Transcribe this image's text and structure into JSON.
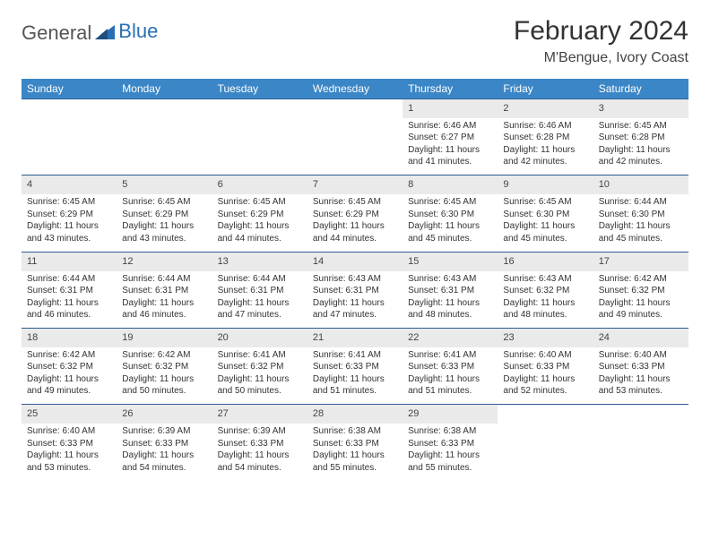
{
  "brand": {
    "word1": "General",
    "word2": "Blue"
  },
  "title": "February 2024",
  "location": "M'Bengue, Ivory Coast",
  "colors": {
    "header_bg": "#3b86c6",
    "header_fg": "#ffffff",
    "daynum_bg": "#eaeaea",
    "rule": "#2e5e8e",
    "brand_blue": "#2a6fb5",
    "text": "#333333",
    "page_bg": "#ffffff"
  },
  "weekdays": [
    "Sunday",
    "Monday",
    "Tuesday",
    "Wednesday",
    "Thursday",
    "Friday",
    "Saturday"
  ],
  "weeks": [
    [
      null,
      null,
      null,
      null,
      {
        "n": "1",
        "sr": "Sunrise: 6:46 AM",
        "ss": "Sunset: 6:27 PM",
        "d1": "Daylight: 11 hours",
        "d2": "and 41 minutes."
      },
      {
        "n": "2",
        "sr": "Sunrise: 6:46 AM",
        "ss": "Sunset: 6:28 PM",
        "d1": "Daylight: 11 hours",
        "d2": "and 42 minutes."
      },
      {
        "n": "3",
        "sr": "Sunrise: 6:45 AM",
        "ss": "Sunset: 6:28 PM",
        "d1": "Daylight: 11 hours",
        "d2": "and 42 minutes."
      }
    ],
    [
      {
        "n": "4",
        "sr": "Sunrise: 6:45 AM",
        "ss": "Sunset: 6:29 PM",
        "d1": "Daylight: 11 hours",
        "d2": "and 43 minutes."
      },
      {
        "n": "5",
        "sr": "Sunrise: 6:45 AM",
        "ss": "Sunset: 6:29 PM",
        "d1": "Daylight: 11 hours",
        "d2": "and 43 minutes."
      },
      {
        "n": "6",
        "sr": "Sunrise: 6:45 AM",
        "ss": "Sunset: 6:29 PM",
        "d1": "Daylight: 11 hours",
        "d2": "and 44 minutes."
      },
      {
        "n": "7",
        "sr": "Sunrise: 6:45 AM",
        "ss": "Sunset: 6:29 PM",
        "d1": "Daylight: 11 hours",
        "d2": "and 44 minutes."
      },
      {
        "n": "8",
        "sr": "Sunrise: 6:45 AM",
        "ss": "Sunset: 6:30 PM",
        "d1": "Daylight: 11 hours",
        "d2": "and 45 minutes."
      },
      {
        "n": "9",
        "sr": "Sunrise: 6:45 AM",
        "ss": "Sunset: 6:30 PM",
        "d1": "Daylight: 11 hours",
        "d2": "and 45 minutes."
      },
      {
        "n": "10",
        "sr": "Sunrise: 6:44 AM",
        "ss": "Sunset: 6:30 PM",
        "d1": "Daylight: 11 hours",
        "d2": "and 45 minutes."
      }
    ],
    [
      {
        "n": "11",
        "sr": "Sunrise: 6:44 AM",
        "ss": "Sunset: 6:31 PM",
        "d1": "Daylight: 11 hours",
        "d2": "and 46 minutes."
      },
      {
        "n": "12",
        "sr": "Sunrise: 6:44 AM",
        "ss": "Sunset: 6:31 PM",
        "d1": "Daylight: 11 hours",
        "d2": "and 46 minutes."
      },
      {
        "n": "13",
        "sr": "Sunrise: 6:44 AM",
        "ss": "Sunset: 6:31 PM",
        "d1": "Daylight: 11 hours",
        "d2": "and 47 minutes."
      },
      {
        "n": "14",
        "sr": "Sunrise: 6:43 AM",
        "ss": "Sunset: 6:31 PM",
        "d1": "Daylight: 11 hours",
        "d2": "and 47 minutes."
      },
      {
        "n": "15",
        "sr": "Sunrise: 6:43 AM",
        "ss": "Sunset: 6:31 PM",
        "d1": "Daylight: 11 hours",
        "d2": "and 48 minutes."
      },
      {
        "n": "16",
        "sr": "Sunrise: 6:43 AM",
        "ss": "Sunset: 6:32 PM",
        "d1": "Daylight: 11 hours",
        "d2": "and 48 minutes."
      },
      {
        "n": "17",
        "sr": "Sunrise: 6:42 AM",
        "ss": "Sunset: 6:32 PM",
        "d1": "Daylight: 11 hours",
        "d2": "and 49 minutes."
      }
    ],
    [
      {
        "n": "18",
        "sr": "Sunrise: 6:42 AM",
        "ss": "Sunset: 6:32 PM",
        "d1": "Daylight: 11 hours",
        "d2": "and 49 minutes."
      },
      {
        "n": "19",
        "sr": "Sunrise: 6:42 AM",
        "ss": "Sunset: 6:32 PM",
        "d1": "Daylight: 11 hours",
        "d2": "and 50 minutes."
      },
      {
        "n": "20",
        "sr": "Sunrise: 6:41 AM",
        "ss": "Sunset: 6:32 PM",
        "d1": "Daylight: 11 hours",
        "d2": "and 50 minutes."
      },
      {
        "n": "21",
        "sr": "Sunrise: 6:41 AM",
        "ss": "Sunset: 6:33 PM",
        "d1": "Daylight: 11 hours",
        "d2": "and 51 minutes."
      },
      {
        "n": "22",
        "sr": "Sunrise: 6:41 AM",
        "ss": "Sunset: 6:33 PM",
        "d1": "Daylight: 11 hours",
        "d2": "and 51 minutes."
      },
      {
        "n": "23",
        "sr": "Sunrise: 6:40 AM",
        "ss": "Sunset: 6:33 PM",
        "d1": "Daylight: 11 hours",
        "d2": "and 52 minutes."
      },
      {
        "n": "24",
        "sr": "Sunrise: 6:40 AM",
        "ss": "Sunset: 6:33 PM",
        "d1": "Daylight: 11 hours",
        "d2": "and 53 minutes."
      }
    ],
    [
      {
        "n": "25",
        "sr": "Sunrise: 6:40 AM",
        "ss": "Sunset: 6:33 PM",
        "d1": "Daylight: 11 hours",
        "d2": "and 53 minutes."
      },
      {
        "n": "26",
        "sr": "Sunrise: 6:39 AM",
        "ss": "Sunset: 6:33 PM",
        "d1": "Daylight: 11 hours",
        "d2": "and 54 minutes."
      },
      {
        "n": "27",
        "sr": "Sunrise: 6:39 AM",
        "ss": "Sunset: 6:33 PM",
        "d1": "Daylight: 11 hours",
        "d2": "and 54 minutes."
      },
      {
        "n": "28",
        "sr": "Sunrise: 6:38 AM",
        "ss": "Sunset: 6:33 PM",
        "d1": "Daylight: 11 hours",
        "d2": "and 55 minutes."
      },
      {
        "n": "29",
        "sr": "Sunrise: 6:38 AM",
        "ss": "Sunset: 6:33 PM",
        "d1": "Daylight: 11 hours",
        "d2": "and 55 minutes."
      },
      null,
      null
    ]
  ]
}
